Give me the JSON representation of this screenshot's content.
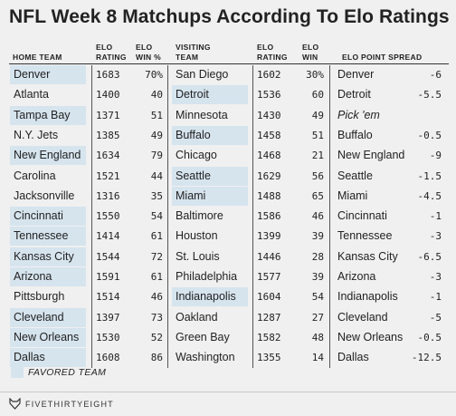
{
  "title": "NFL Week 8 Matchups According To Elo Ratings",
  "headers": {
    "home_team": "HOME TEAM",
    "home_elo": [
      "ELO",
      "RATING"
    ],
    "home_win": [
      "ELO",
      "WIN %"
    ],
    "visiting_team": [
      "VISITING",
      "TEAM"
    ],
    "visit_elo": [
      "ELO",
      "RATING"
    ],
    "visit_win": [
      "ELO",
      "WIN"
    ],
    "spread": "ELO POINT SPREAD"
  },
  "colors": {
    "favored": "#d6e4ee",
    "background": "#f0f0f0"
  },
  "legend": "FAVORED TEAM",
  "brand": "FIVETHIRTYEIGHT",
  "brand_icon": "fivethirtyeight-fox-icon",
  "chart_data": {
    "type": "table",
    "columns": [
      "HOME TEAM",
      "ELO RATING",
      "ELO WIN %",
      "VISITING TEAM",
      "ELO RATING",
      "ELO WIN",
      "ELO POINT SPREAD"
    ],
    "rows": [
      {
        "home": "Denver",
        "home_elo": "1683",
        "home_win": "70%",
        "visitor": "San Diego",
        "visit_elo": "1602",
        "visit_win": "30%",
        "spread_team": "Denver",
        "spread": "-6",
        "favored": "home"
      },
      {
        "home": "Atlanta",
        "home_elo": "1400",
        "home_win": "40",
        "visitor": "Detroit",
        "visit_elo": "1536",
        "visit_win": "60",
        "spread_team": "Detroit",
        "spread": "-5.5",
        "favored": "visitor"
      },
      {
        "home": "Tampa Bay",
        "home_elo": "1371",
        "home_win": "51",
        "visitor": "Minnesota",
        "visit_elo": "1430",
        "visit_win": "49",
        "spread_team": "Pick 'em",
        "spread": "",
        "favored": "home"
      },
      {
        "home": "N.Y. Jets",
        "home_elo": "1385",
        "home_win": "49",
        "visitor": "Buffalo",
        "visit_elo": "1458",
        "visit_win": "51",
        "spread_team": "Buffalo",
        "spread": "-0.5",
        "favored": "visitor"
      },
      {
        "home": "New England",
        "home_elo": "1634",
        "home_win": "79",
        "visitor": "Chicago",
        "visit_elo": "1468",
        "visit_win": "21",
        "spread_team": "New England",
        "spread": "-9",
        "favored": "home"
      },
      {
        "home": "Carolina",
        "home_elo": "1521",
        "home_win": "44",
        "visitor": "Seattle",
        "visit_elo": "1629",
        "visit_win": "56",
        "spread_team": "Seattle",
        "spread": "-1.5",
        "favored": "visitor"
      },
      {
        "home": "Jacksonville",
        "home_elo": "1316",
        "home_win": "35",
        "visitor": "Miami",
        "visit_elo": "1488",
        "visit_win": "65",
        "spread_team": "Miami",
        "spread": "-4.5",
        "favored": "visitor"
      },
      {
        "home": "Cincinnati",
        "home_elo": "1550",
        "home_win": "54",
        "visitor": "Baltimore",
        "visit_elo": "1586",
        "visit_win": "46",
        "spread_team": "Cincinnati",
        "spread": "-1",
        "favored": "home"
      },
      {
        "home": "Tennessee",
        "home_elo": "1414",
        "home_win": "61",
        "visitor": "Houston",
        "visit_elo": "1399",
        "visit_win": "39",
        "spread_team": "Tennessee",
        "spread": "-3",
        "favored": "home"
      },
      {
        "home": "Kansas City",
        "home_elo": "1544",
        "home_win": "72",
        "visitor": "St. Louis",
        "visit_elo": "1446",
        "visit_win": "28",
        "spread_team": "Kansas City",
        "spread": "-6.5",
        "favored": "home"
      },
      {
        "home": "Arizona",
        "home_elo": "1591",
        "home_win": "61",
        "visitor": "Philadelphia",
        "visit_elo": "1577",
        "visit_win": "39",
        "spread_team": "Arizona",
        "spread": "-3",
        "favored": "home"
      },
      {
        "home": "Pittsburgh",
        "home_elo": "1514",
        "home_win": "46",
        "visitor": "Indianapolis",
        "visit_elo": "1604",
        "visit_win": "54",
        "spread_team": "Indianapolis",
        "spread": "-1",
        "favored": "visitor"
      },
      {
        "home": "Cleveland",
        "home_elo": "1397",
        "home_win": "73",
        "visitor": "Oakland",
        "visit_elo": "1287",
        "visit_win": "27",
        "spread_team": "Cleveland",
        "spread": "-5",
        "favored": "home"
      },
      {
        "home": "New Orleans",
        "home_elo": "1530",
        "home_win": "52",
        "visitor": "Green Bay",
        "visit_elo": "1582",
        "visit_win": "48",
        "spread_team": "New Orleans",
        "spread": "-0.5",
        "favored": "home"
      },
      {
        "home": "Dallas",
        "home_elo": "1608",
        "home_win": "86",
        "visitor": "Washington",
        "visit_elo": "1355",
        "visit_win": "14",
        "spread_team": "Dallas",
        "spread": "-12.5",
        "favored": "home"
      }
    ]
  }
}
